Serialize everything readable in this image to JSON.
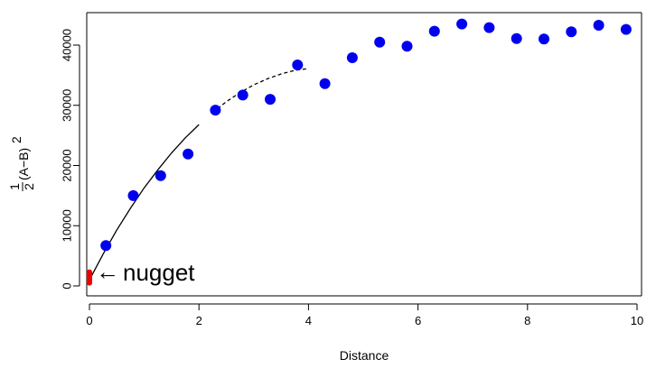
{
  "chart_data": {
    "type": "scatter",
    "xlabel": "Distance",
    "ylabel": "(A−B)",
    "ylabel_fraction": {
      "numerator": "1",
      "denominator": "2"
    },
    "ylabel_exponent": "2",
    "xlim": [
      0,
      10
    ],
    "ylim": [
      0,
      45000
    ],
    "x_ticks": [
      0,
      2,
      4,
      6,
      8,
      10
    ],
    "y_ticks": [
      0,
      10000,
      20000,
      30000,
      40000
    ],
    "grid": false,
    "points": {
      "color": "#0000ee",
      "x": [
        0.3,
        0.8,
        1.3,
        1.8,
        2.3,
        2.8,
        3.3,
        3.8,
        4.3,
        4.8,
        5.3,
        5.8,
        6.3,
        6.8,
        7.3,
        7.8,
        8.3,
        8.8,
        9.3,
        9.8
      ],
      "y": [
        6700,
        15000,
        18300,
        21900,
        29200,
        31700,
        31000,
        36700,
        33600,
        37900,
        40500,
        39800,
        42300,
        43500,
        42900,
        41100,
        41000,
        42200,
        43300,
        42600
      ]
    },
    "curve": {
      "color": "#000000",
      "solid_x_range": [
        0,
        2.2
      ],
      "dashed_x_range": [
        2.2,
        4.0
      ],
      "x": [
        0,
        0.25,
        0.5,
        0.75,
        1.0,
        1.25,
        1.5,
        1.75,
        2.0,
        2.25,
        2.5,
        2.75,
        3.0,
        3.25,
        3.5,
        3.75,
        4.0
      ],
      "y": [
        1000,
        5300,
        9300,
        12900,
        16300,
        19300,
        22100,
        24600,
        26800,
        28800,
        30600,
        32100,
        33400,
        34400,
        35200,
        35800,
        36100
      ]
    },
    "nugget": {
      "color": "#ee0000",
      "x": 0,
      "y_range": [
        500,
        2300
      ],
      "label": "nugget",
      "arrow_glyph": "←"
    }
  }
}
